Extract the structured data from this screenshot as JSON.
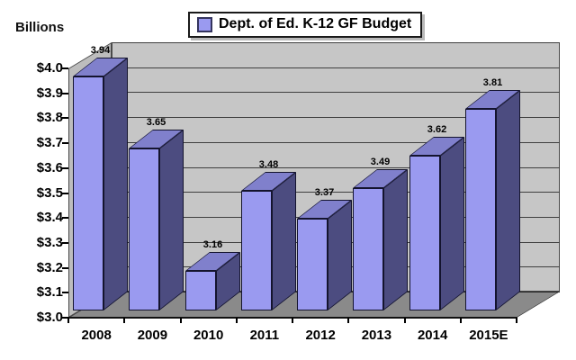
{
  "chart": {
    "legend": {
      "label": "Dept. of Ed. K-12 GF Budget"
    }
  },
  "chart_data": {
    "type": "bar",
    "style": "3d-column",
    "title": "Dept. of Ed. K-12 GF Budget",
    "ylabel": "Billions",
    "xlabel": "",
    "categories": [
      "2008",
      "2009",
      "2010",
      "2011",
      "2012",
      "2013",
      "2014",
      "2015E"
    ],
    "values": [
      3.94,
      3.65,
      3.16,
      3.48,
      3.37,
      3.49,
      3.62,
      3.81
    ],
    "data_labels": [
      "3.94",
      "3.65",
      "3.16",
      "3.48",
      "3.37",
      "3.49",
      "3.62",
      "3.81"
    ],
    "series_name": "Dept. of Ed. K-12 GF Budget",
    "ylim": [
      3.0,
      4.0
    ],
    "y_tick_step": 0.1,
    "y_tick_labels_top_down": [
      "$4.0",
      "$3.9",
      "$3.8",
      "$3.7",
      "$3.6",
      "$3.5",
      "$3.4",
      "$3.3",
      "$3.2",
      "$3.1",
      "$3.0"
    ],
    "grid": true,
    "legend_position": "top-center",
    "colors": {
      "bar_front": "#9A9AF0",
      "bar_side": "#4C4C80",
      "bar_top": "#8080CC",
      "back_wall": "#C6C6C6",
      "side_wall": "#BDBDBD",
      "floor": "#8A8A8A",
      "gridline": "#3F3F3F",
      "text": "#000000",
      "legend_swatch": "#9A9AF0",
      "background": "#FFFFFF"
    }
  }
}
